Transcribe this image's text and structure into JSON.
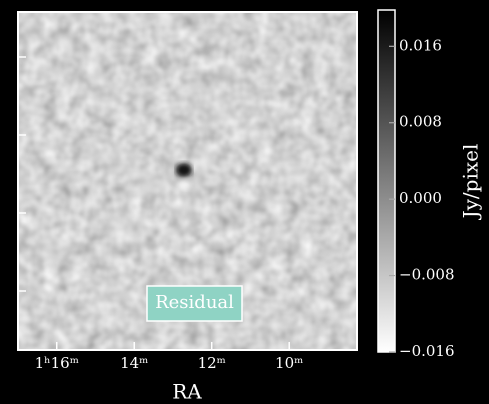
{
  "chart_data": {
    "type": "image",
    "annotation": "Residual",
    "xlabel": "RA",
    "xlim": [
      17.0,
      8.25
    ],
    "xticks": [
      {
        "value": 16,
        "label": "1ʰ16ᵐ"
      },
      {
        "value": 14,
        "label": "14ᵐ"
      },
      {
        "value": 12,
        "label": "12ᵐ"
      },
      {
        "value": 10,
        "label": "10ᵐ"
      }
    ],
    "colorbar": {
      "label": "Jy/pixel",
      "clim": [
        -0.016,
        0.0198
      ],
      "ticks": [
        {
          "value": -0.016,
          "label": "−0.016"
        },
        {
          "value": -0.008,
          "label": "−0.008"
        },
        {
          "value": 0,
          "label": "0.000"
        },
        0.008,
        0.016
      ],
      "colors": [
        "#ffffff",
        "#000000"
      ]
    }
  }
}
